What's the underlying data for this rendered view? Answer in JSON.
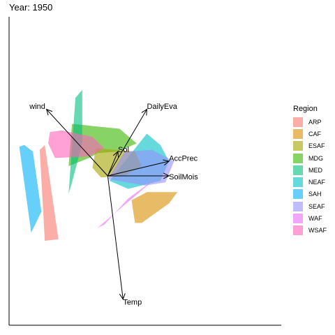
{
  "chart_data": {
    "type": "biplot",
    "title": "Year: 1950",
    "legend": {
      "title": "Region",
      "position": "right",
      "entries": [
        {
          "name": "ARP",
          "color": "#F8766D"
        },
        {
          "name": "CAF",
          "color": "#D89000"
        },
        {
          "name": "ESAF",
          "color": "#A3A500"
        },
        {
          "name": "MDG",
          "color": "#39B600"
        },
        {
          "name": "MED",
          "color": "#00BF7D"
        },
        {
          "name": "NEAF",
          "color": "#00BFC4"
        },
        {
          "name": "SAH",
          "color": "#00B0F6"
        },
        {
          "name": "SEAF",
          "color": "#9590FF"
        },
        {
          "name": "WAF",
          "color": "#E76BF3"
        },
        {
          "name": "WSAF",
          "color": "#FF62BC"
        }
      ]
    },
    "hull_opacity": 0.6,
    "hulls": [
      {
        "region": "MDG",
        "points": [
          [
            -1.25,
            -0.1
          ],
          [
            -1.15,
            1.2
          ],
          [
            0.25,
            1.05
          ],
          [
            0.75,
            0.6
          ],
          [
            0.2,
            0.35
          ],
          [
            -0.4,
            0.3
          ],
          [
            -0.65,
            0.15
          ]
        ]
      },
      {
        "region": "MED",
        "points": [
          [
            -1.05,
            2.0
          ],
          [
            -0.85,
            2.25
          ],
          [
            -0.85,
            0.6
          ],
          [
            -1.15,
            -0.6
          ],
          [
            -1.25,
            -0.95
          ]
        ]
      },
      {
        "region": "NEAF",
        "points": [
          [
            -0.05,
            -0.55
          ],
          [
            1.05,
            0.9
          ],
          [
            1.45,
            0.55
          ],
          [
            1.7,
            0.05
          ],
          [
            1.45,
            -0.55
          ],
          [
            0.5,
            -0.8
          ]
        ]
      },
      {
        "region": "ESAF",
        "points": [
          [
            -0.45,
            0.45
          ],
          [
            -0.55,
            -0.15
          ],
          [
            -0.3,
            -0.45
          ],
          [
            0.4,
            -0.4
          ],
          [
            0.9,
            -0.1
          ],
          [
            0.7,
            0.35
          ]
        ]
      },
      {
        "region": "SEAF",
        "points": [
          [
            -0.1,
            -0.5
          ],
          [
            0.4,
            0.35
          ],
          [
            1.2,
            0.4
          ],
          [
            1.85,
            0.05
          ],
          [
            1.6,
            -0.6
          ],
          [
            1.0,
            -0.7
          ]
        ]
      },
      {
        "region": "WSAF",
        "points": [
          [
            -1.85,
            0.6
          ],
          [
            -1.8,
            0.95
          ],
          [
            -1.45,
            1.0
          ],
          [
            -0.55,
            0.8
          ],
          [
            -0.2,
            0.45
          ],
          [
            -0.65,
            0.2
          ],
          [
            -1.65,
            0.15
          ]
        ]
      },
      {
        "region": "CAF",
        "points": [
          [
            0.6,
            -1.15
          ],
          [
            1.05,
            -0.9
          ],
          [
            1.95,
            -0.9
          ],
          [
            1.7,
            -1.25
          ],
          [
            0.9,
            -1.85
          ],
          [
            0.7,
            -1.85
          ]
        ]
      },
      {
        "region": "WAF",
        "points": [
          [
            -0.4,
            -2.0
          ],
          [
            1.4,
            -0.4
          ],
          [
            1.7,
            -0.1
          ],
          [
            1.35,
            -0.45
          ],
          [
            0.5,
            -1.1
          ],
          [
            -0.2,
            -1.9
          ]
        ]
      },
      {
        "region": "ARP",
        "points": [
          [
            -2.1,
            0.4
          ],
          [
            -1.95,
            0.55
          ],
          [
            -1.55,
            -2.35
          ],
          [
            -1.95,
            -2.4
          ]
        ]
      },
      {
        "region": "SAH",
        "points": [
          [
            -2.7,
            0.5
          ],
          [
            -2.55,
            0.55
          ],
          [
            -2.3,
            0.35
          ],
          [
            -2.05,
            -1.5
          ],
          [
            -2.35,
            -2.15
          ]
        ]
      }
    ],
    "origin": [
      -0.1,
      -0.4
    ],
    "arrows": [
      {
        "label": "wind",
        "end": [
          -1.9,
          1.65
        ],
        "label_pos": [
          -2.4,
          1.72
        ]
      },
      {
        "label": "DailyEva",
        "end": [
          1.05,
          1.65
        ],
        "label_pos": [
          1.05,
          1.72
        ]
      },
      {
        "label": "Sol",
        "end": [
          0.2,
          0.35
        ],
        "label_pos": [
          0.2,
          0.39
        ]
      },
      {
        "label": "AccPrec",
        "end": [
          1.7,
          0.05
        ],
        "label_pos": [
          1.7,
          0.12
        ]
      },
      {
        "label": "SoilMois",
        "end": [
          1.7,
          -0.4
        ],
        "label_pos": [
          1.7,
          -0.45
        ]
      },
      {
        "label": "Temp",
        "end": [
          0.35,
          -4.2
        ],
        "label_pos": [
          0.35,
          -4.3
        ]
      }
    ],
    "xlim": [
      -3.0,
      5.0
    ],
    "ylim": [
      -5.0,
      4.5
    ],
    "grid": false,
    "xlabel": "",
    "ylabel": ""
  }
}
